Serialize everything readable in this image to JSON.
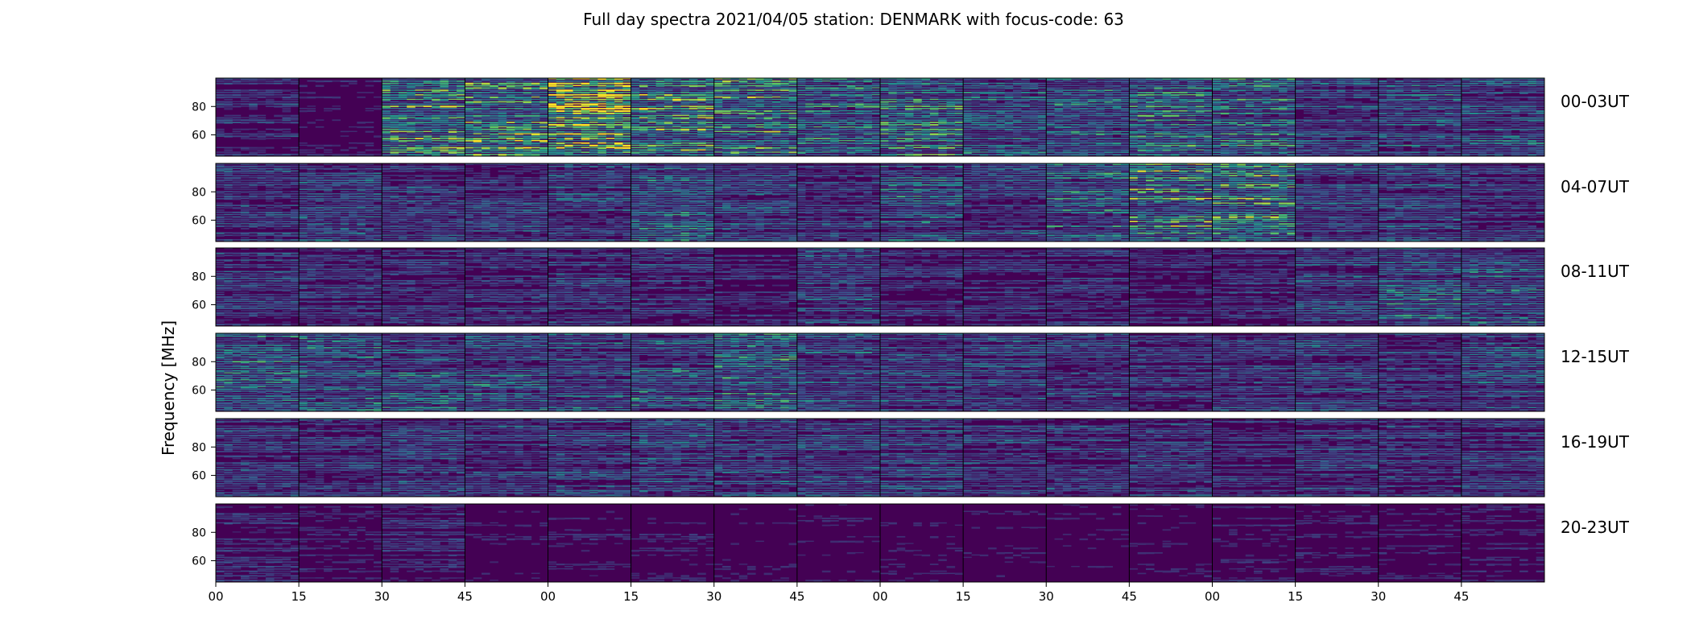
{
  "chart_data": {
    "type": "heatmap",
    "title": "Full day spectra 2021/04/05 station: DENMARK with focus-code: 63",
    "ylabel": "Frequency [MHz]",
    "ylim": [
      45,
      100
    ],
    "y_ticks": [
      60,
      80
    ],
    "x_ticks": [
      "00",
      "15",
      "30",
      "45",
      "00",
      "15",
      "30",
      "45",
      "00",
      "15",
      "30",
      "45",
      "00",
      "15",
      "30",
      "45"
    ],
    "panels_per_row": 16,
    "grid": false,
    "colormap": [
      "#440154",
      "#3b528b",
      "#21918c",
      "#5ec962",
      "#fde725"
    ],
    "rows": [
      {
        "label": "00-03UT",
        "activity": [
          0.25,
          0.15,
          0.7,
          0.8,
          0.9,
          0.75,
          0.7,
          0.55,
          0.6,
          0.45,
          0.5,
          0.6,
          0.55,
          0.4,
          0.45,
          0.4
        ]
      },
      {
        "label": "04-07UT",
        "activity": [
          0.3,
          0.35,
          0.3,
          0.3,
          0.35,
          0.45,
          0.35,
          0.3,
          0.45,
          0.35,
          0.5,
          0.7,
          0.75,
          0.4,
          0.35,
          0.3
        ]
      },
      {
        "label": "08-11UT",
        "activity": [
          0.3,
          0.25,
          0.25,
          0.25,
          0.3,
          0.3,
          0.2,
          0.35,
          0.25,
          0.25,
          0.25,
          0.2,
          0.25,
          0.35,
          0.45,
          0.45
        ]
      },
      {
        "label": "12-15UT",
        "activity": [
          0.5,
          0.5,
          0.45,
          0.45,
          0.4,
          0.45,
          0.55,
          0.4,
          0.35,
          0.35,
          0.35,
          0.3,
          0.3,
          0.35,
          0.3,
          0.4
        ]
      },
      {
        "label": "16-19UT",
        "activity": [
          0.3,
          0.3,
          0.3,
          0.3,
          0.35,
          0.35,
          0.35,
          0.35,
          0.35,
          0.3,
          0.3,
          0.3,
          0.25,
          0.3,
          0.3,
          0.3
        ]
      },
      {
        "label": "20-23UT",
        "activity": [
          0.2,
          0.15,
          0.2,
          0.12,
          0.15,
          0.15,
          0.12,
          0.12,
          0.12,
          0.12,
          0.12,
          0.12,
          0.15,
          0.15,
          0.15,
          0.15
        ]
      }
    ]
  }
}
